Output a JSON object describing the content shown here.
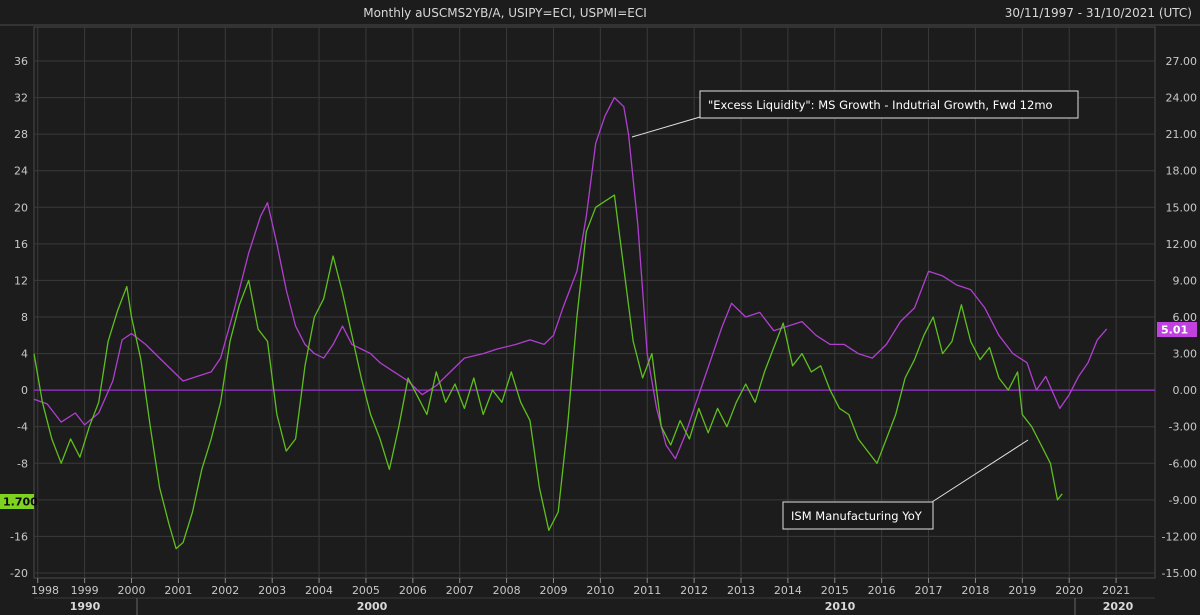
{
  "header": {
    "title": "Monthly aUSCMS2YB/A, USIPY=ECI, USPMI=ECI",
    "date_range": "30/11/1997 - 31/10/2021 (UTC)"
  },
  "colors": {
    "background": "#1c1c1c",
    "grid": "#3a3a3a",
    "liquidity": "#b03fd0",
    "ism": "#5fbf1f",
    "zero_line": "#9a2fd0",
    "text": "#c8c8c8"
  },
  "badges": {
    "left_value": "1.700",
    "right_value": "5.01"
  },
  "annotations": {
    "liquidity_label": "\"Excess Liquidity\": MS Growth - Indutrial Growth, Fwd 12mo",
    "ism_label": "ISM Manufacturing YoY"
  },
  "chart_data": {
    "type": "line",
    "left_axis": {
      "ticks": [
        "36",
        "32",
        "28",
        "24",
        "20",
        "16",
        "12",
        "8",
        "4",
        "0",
        "-4",
        "-8",
        "-12",
        "-16",
        "-20"
      ],
      "range": [
        -20,
        36
      ]
    },
    "right_axis": {
      "ticks": [
        "27.00",
        "24.00",
        "21.00",
        "18.00",
        "15.00",
        "12.00",
        "9.00",
        "6.00",
        "3.00",
        "0.00",
        "-3.00",
        "-6.00",
        "-9.00",
        "-12.00",
        "-15.00"
      ],
      "range": [
        -15,
        27
      ]
    },
    "x_ticks": [
      "1998",
      "1999",
      "2000",
      "2001",
      "2002",
      "2003",
      "2004",
      "2005",
      "2006",
      "2007",
      "2008",
      "2009",
      "2010",
      "2011",
      "2012",
      "2013",
      "2014",
      "2015",
      "2016",
      "2017",
      "2018",
      "2019",
      "2020",
      "2021"
    ],
    "eras": [
      "1990",
      "2000",
      "2010",
      "2020"
    ],
    "series": [
      {
        "name": "\"Excess Liquidity\": MS Growth - Indutrial Growth, Fwd 12mo",
        "axis": "left",
        "points": [
          [
            1997.92,
            -1
          ],
          [
            1998.2,
            -1.5
          ],
          [
            1998.5,
            -3.5
          ],
          [
            1998.8,
            -2.5
          ],
          [
            1999.0,
            -3.8
          ],
          [
            1999.3,
            -2.5
          ],
          [
            1999.6,
            1
          ],
          [
            1999.8,
            5.5
          ],
          [
            2000.0,
            6.2
          ],
          [
            2000.3,
            5
          ],
          [
            2000.6,
            3.5
          ],
          [
            2000.9,
            2
          ],
          [
            2001.1,
            1
          ],
          [
            2001.4,
            1.5
          ],
          [
            2001.7,
            2
          ],
          [
            2001.9,
            3.5
          ],
          [
            2002.2,
            9
          ],
          [
            2002.5,
            15
          ],
          [
            2002.75,
            19
          ],
          [
            2002.9,
            20.5
          ],
          [
            2003.1,
            16
          ],
          [
            2003.3,
            11
          ],
          [
            2003.5,
            7
          ],
          [
            2003.7,
            5
          ],
          [
            2003.9,
            4
          ],
          [
            2004.1,
            3.5
          ],
          [
            2004.3,
            5
          ],
          [
            2004.5,
            7
          ],
          [
            2004.7,
            5
          ],
          [
            2004.9,
            4.5
          ],
          [
            2005.1,
            4
          ],
          [
            2005.3,
            3
          ],
          [
            2005.6,
            2
          ],
          [
            2005.9,
            1
          ],
          [
            2006.2,
            -0.5
          ],
          [
            2006.5,
            0.5
          ],
          [
            2006.8,
            2
          ],
          [
            2007.1,
            3.5
          ],
          [
            2007.5,
            4
          ],
          [
            2007.8,
            4.5
          ],
          [
            2008.2,
            5
          ],
          [
            2008.5,
            5.5
          ],
          [
            2008.8,
            5
          ],
          [
            2009.0,
            6
          ],
          [
            2009.2,
            9
          ],
          [
            2009.5,
            13
          ],
          [
            2009.7,
            19
          ],
          [
            2009.9,
            27
          ],
          [
            2010.1,
            30
          ],
          [
            2010.3,
            32
          ],
          [
            2010.5,
            31
          ],
          [
            2010.6,
            28
          ],
          [
            2010.8,
            18
          ],
          [
            2011.0,
            4
          ],
          [
            2011.2,
            -2
          ],
          [
            2011.4,
            -6
          ],
          [
            2011.6,
            -7.5
          ],
          [
            2011.8,
            -5
          ],
          [
            2012.0,
            -2
          ],
          [
            2012.2,
            1
          ],
          [
            2012.4,
            4
          ],
          [
            2012.6,
            7
          ],
          [
            2012.8,
            9.5
          ],
          [
            2013.1,
            8
          ],
          [
            2013.4,
            8.5
          ],
          [
            2013.7,
            6.5
          ],
          [
            2014.0,
            7
          ],
          [
            2014.3,
            7.5
          ],
          [
            2014.6,
            6
          ],
          [
            2014.9,
            5
          ],
          [
            2015.2,
            5
          ],
          [
            2015.5,
            4
          ],
          [
            2015.8,
            3.5
          ],
          [
            2016.1,
            5
          ],
          [
            2016.4,
            7.5
          ],
          [
            2016.7,
            9
          ],
          [
            2017.0,
            13
          ],
          [
            2017.3,
            12.5
          ],
          [
            2017.6,
            11.5
          ],
          [
            2017.9,
            11
          ],
          [
            2018.2,
            9
          ],
          [
            2018.5,
            6
          ],
          [
            2018.8,
            4
          ],
          [
            2019.1,
            3
          ],
          [
            2019.3,
            0
          ],
          [
            2019.5,
            1.5
          ],
          [
            2019.8,
            -2
          ],
          [
            2020.0,
            -0.5
          ],
          [
            2020.2,
            1.5
          ],
          [
            2020.4,
            3
          ],
          [
            2020.6,
            5.5
          ],
          [
            2020.8,
            6.7
          ]
        ]
      },
      {
        "name": "ISM Manufacturing YoY",
        "axis": "right",
        "points": [
          [
            1997.92,
            3
          ],
          [
            1998.1,
            -1
          ],
          [
            1998.3,
            -4
          ],
          [
            1998.5,
            -6
          ],
          [
            1998.7,
            -4
          ],
          [
            1998.9,
            -5.5
          ],
          [
            1999.1,
            -3
          ],
          [
            1999.3,
            -1
          ],
          [
            1999.5,
            4
          ],
          [
            1999.7,
            6.5
          ],
          [
            1999.9,
            8.5
          ],
          [
            2000.0,
            6
          ],
          [
            2000.2,
            2.5
          ],
          [
            2000.4,
            -3
          ],
          [
            2000.6,
            -8
          ],
          [
            2000.8,
            -11
          ],
          [
            2000.95,
            -13
          ],
          [
            2001.1,
            -12.5
          ],
          [
            2001.3,
            -10
          ],
          [
            2001.5,
            -6.5
          ],
          [
            2001.7,
            -4
          ],
          [
            2001.9,
            -1
          ],
          [
            2002.1,
            4
          ],
          [
            2002.3,
            7
          ],
          [
            2002.5,
            9
          ],
          [
            2002.7,
            5
          ],
          [
            2002.9,
            4
          ],
          [
            2003.1,
            -2
          ],
          [
            2003.3,
            -5
          ],
          [
            2003.5,
            -4
          ],
          [
            2003.7,
            2
          ],
          [
            2003.9,
            6
          ],
          [
            2004.1,
            7.5
          ],
          [
            2004.3,
            11
          ],
          [
            2004.5,
            8
          ],
          [
            2004.7,
            4.5
          ],
          [
            2004.9,
            1
          ],
          [
            2005.1,
            -2
          ],
          [
            2005.3,
            -4
          ],
          [
            2005.5,
            -6.5
          ],
          [
            2005.7,
            -3
          ],
          [
            2005.9,
            1
          ],
          [
            2006.1,
            -0.5
          ],
          [
            2006.3,
            -2
          ],
          [
            2006.5,
            1.5
          ],
          [
            2006.7,
            -1
          ],
          [
            2006.9,
            0.5
          ],
          [
            2007.1,
            -1.5
          ],
          [
            2007.3,
            1
          ],
          [
            2007.5,
            -2
          ],
          [
            2007.7,
            0
          ],
          [
            2007.9,
            -1
          ],
          [
            2008.1,
            1.5
          ],
          [
            2008.3,
            -1
          ],
          [
            2008.5,
            -2.5
          ],
          [
            2008.7,
            -8
          ],
          [
            2008.9,
            -11.5
          ],
          [
            2009.1,
            -10
          ],
          [
            2009.3,
            -3
          ],
          [
            2009.5,
            6
          ],
          [
            2009.7,
            13
          ],
          [
            2009.9,
            15
          ],
          [
            2010.1,
            15.5
          ],
          [
            2010.3,
            16
          ],
          [
            2010.5,
            10
          ],
          [
            2010.7,
            4
          ],
          [
            2010.9,
            1
          ],
          [
            2011.1,
            3
          ],
          [
            2011.3,
            -3
          ],
          [
            2011.5,
            -4.5
          ],
          [
            2011.7,
            -2.5
          ],
          [
            2011.9,
            -4
          ],
          [
            2012.1,
            -1.5
          ],
          [
            2012.3,
            -3.5
          ],
          [
            2012.5,
            -1.5
          ],
          [
            2012.7,
            -3
          ],
          [
            2012.9,
            -1
          ],
          [
            2013.1,
            0.5
          ],
          [
            2013.3,
            -1
          ],
          [
            2013.5,
            1.5
          ],
          [
            2013.7,
            3.5
          ],
          [
            2013.9,
            5.5
          ],
          [
            2014.1,
            2
          ],
          [
            2014.3,
            3
          ],
          [
            2014.5,
            1.5
          ],
          [
            2014.7,
            2
          ],
          [
            2014.9,
            0
          ],
          [
            2015.1,
            -1.5
          ],
          [
            2015.3,
            -2
          ],
          [
            2015.5,
            -4
          ],
          [
            2015.7,
            -5
          ],
          [
            2015.9,
            -6
          ],
          [
            2016.1,
            -4
          ],
          [
            2016.3,
            -2
          ],
          [
            2016.5,
            1
          ],
          [
            2016.7,
            2.5
          ],
          [
            2016.9,
            4.5
          ],
          [
            2017.1,
            6
          ],
          [
            2017.3,
            3
          ],
          [
            2017.5,
            4
          ],
          [
            2017.7,
            7
          ],
          [
            2017.9,
            4
          ],
          [
            2018.1,
            2.5
          ],
          [
            2018.3,
            3.5
          ],
          [
            2018.5,
            1
          ],
          [
            2018.7,
            0
          ],
          [
            2018.9,
            1.5
          ],
          [
            2019.0,
            -2
          ],
          [
            2019.2,
            -3
          ],
          [
            2019.4,
            -4.5
          ],
          [
            2019.6,
            -6
          ],
          [
            2019.75,
            -9
          ],
          [
            2019.85,
            -8.5
          ]
        ]
      }
    ]
  }
}
